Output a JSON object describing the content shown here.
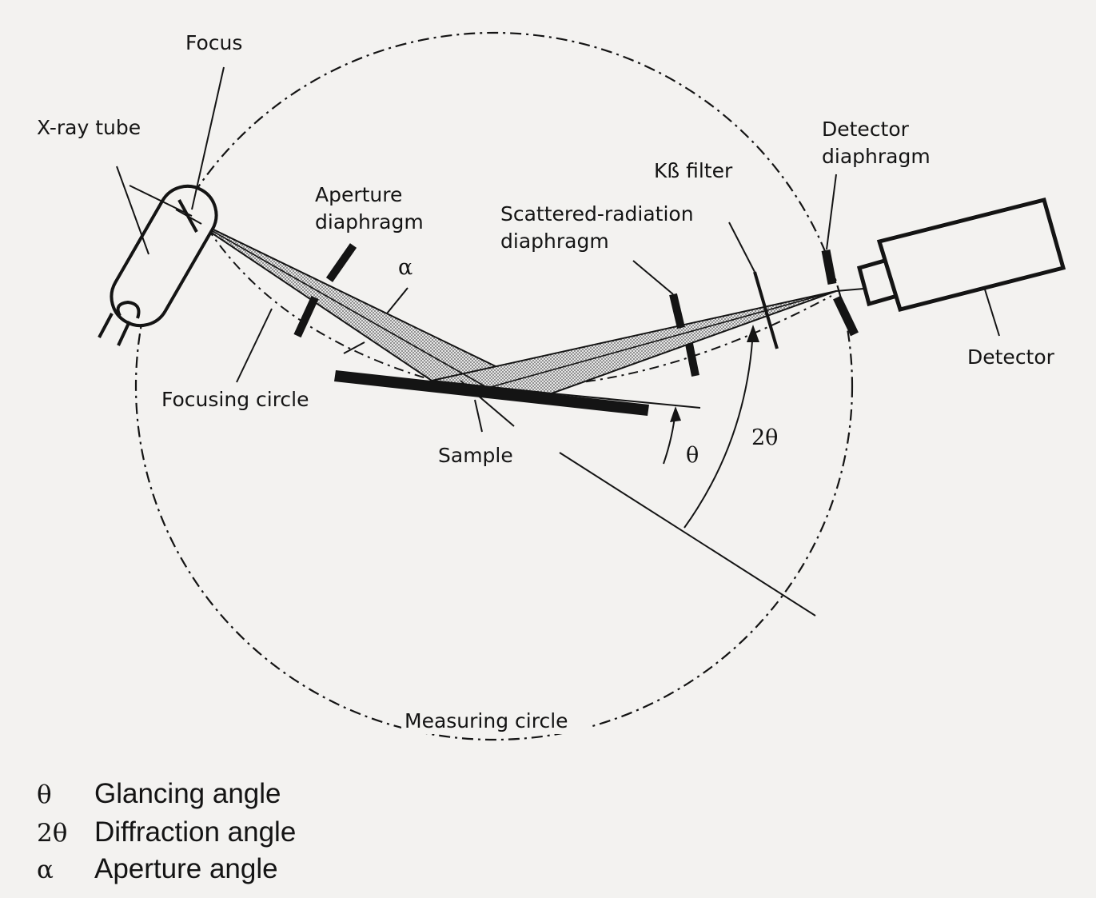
{
  "labels": {
    "focus": "Focus",
    "xray_tube": "X-ray tube",
    "aperture_1": "Aperture",
    "aperture_2": "diaphragm",
    "alpha": "α",
    "scattered_1": "Scattered-radiation",
    "scattered_2": "diaphragm",
    "kb_filter": "Kß filter",
    "detector_diaphragm_1": "Detector",
    "detector_diaphragm_2": "diaphragm",
    "detector": "Detector",
    "focusing_circle": "Focusing circle",
    "sample": "Sample",
    "theta": "θ",
    "two_theta": "2θ",
    "measuring_circle": "Measuring circle"
  },
  "legend": [
    {
      "symbol": "θ",
      "text": "Glancing angle"
    },
    {
      "symbol": "2θ",
      "text": "Diffraction angle"
    },
    {
      "symbol": "α",
      "text": "Aperture angle"
    }
  ],
  "colors": {
    "ink": "#141414",
    "paper": "#f3f2f0",
    "beam_fill": "#bdbdbd"
  }
}
